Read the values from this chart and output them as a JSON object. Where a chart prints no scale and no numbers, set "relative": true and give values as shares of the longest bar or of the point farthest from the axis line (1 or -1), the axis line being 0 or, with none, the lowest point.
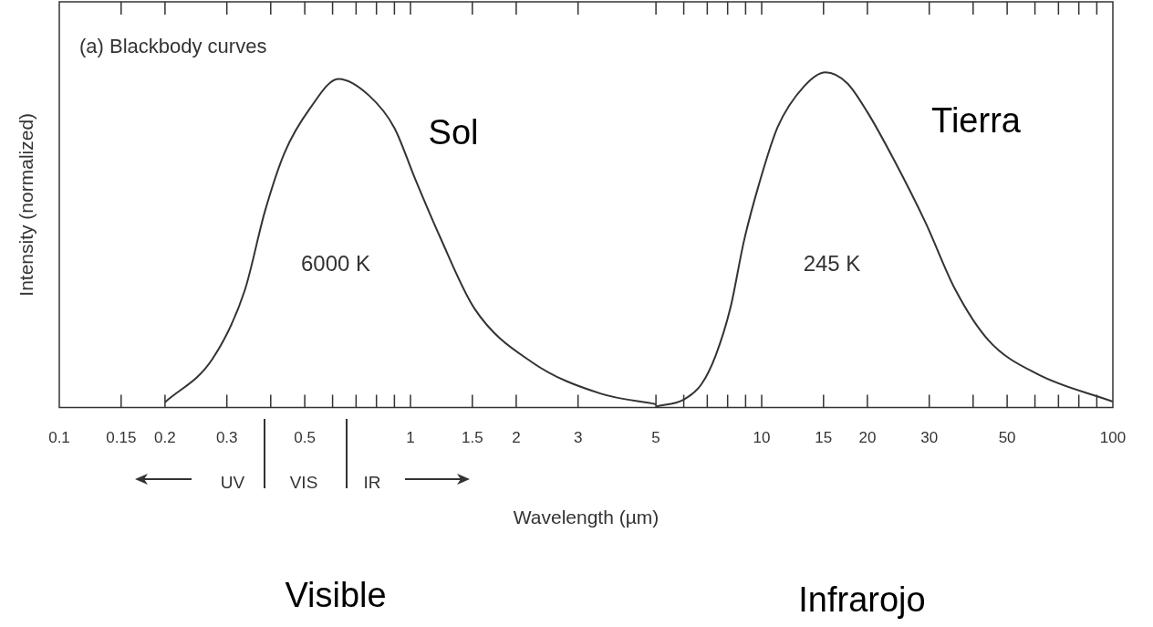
{
  "chart_data": {
    "type": "line",
    "title": "(a) Blackbody curves",
    "xlabel": "Wavelength (µm)",
    "ylabel": "Intensity (normalized)",
    "relative": true,
    "log": "x",
    "legend": false,
    "grid": false,
    "xlim": [
      0.1,
      100
    ],
    "xticks": [
      0.1,
      0.15,
      0.2,
      0.3,
      {
        "value": 0.4,
        "label": null
      },
      0.5,
      {
        "value": 0.6,
        "label": null
      },
      {
        "value": 0.7,
        "label": null
      },
      {
        "value": 0.8,
        "label": null
      },
      {
        "value": 0.9,
        "label": null
      },
      1,
      1.5,
      2,
      3,
      5,
      {
        "value": 6,
        "label": null
      },
      {
        "value": 7,
        "label": null
      },
      {
        "value": 8,
        "label": null
      },
      {
        "value": 9,
        "label": null
      },
      10,
      15,
      20,
      30,
      {
        "value": 40,
        "label": null
      },
      50,
      {
        "value": 60,
        "label": null
      },
      {
        "value": 70,
        "label": null
      },
      {
        "value": 80,
        "label": null
      },
      {
        "value": 90,
        "label": null
      },
      100
    ],
    "series": [
      {
        "color": "#333333",
        "x": [
          0.2,
          0.273,
          0.337,
          0.385,
          0.438,
          0.515,
          0.624,
          0.763,
          0.9,
          1.03,
          1.21,
          1.52,
          2.22,
          3.47,
          5
        ],
        "values": [
          0.016,
          0.145,
          0.348,
          0.585,
          0.76,
          0.889,
          0.98,
          0.93,
          0.834,
          0.683,
          0.512,
          0.296,
          0.135,
          0.042,
          0.01
        ]
      },
      {
        "color": "#333333",
        "x": [
          5,
          6,
          6.73,
          7.4,
          8.15,
          8.9,
          9.8,
          11.1,
          13.2,
          15.2,
          17.5,
          20,
          23.8,
          29.3,
          35.5,
          44.3,
          61,
          100
        ],
        "values": [
          0.003,
          0.024,
          0.069,
          0.156,
          0.298,
          0.496,
          0.662,
          0.836,
          0.958,
          1,
          0.968,
          0.881,
          0.739,
          0.551,
          0.354,
          0.2,
          0.1,
          0.018
        ]
      }
    ],
    "annotations": [
      "Sol",
      "Tierra",
      "6000 K",
      "245 K",
      "UV",
      "VIS",
      "IR",
      "Visible",
      "Infrarojo"
    ]
  }
}
